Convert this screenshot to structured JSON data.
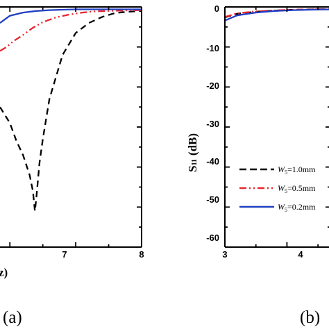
{
  "chart_data": [
    {
      "type": "line",
      "panel_label": "(a)",
      "xlabel_fragment": "z)",
      "x_ticks": [
        "7",
        "8"
      ],
      "xlim": [
        5.85,
        8.0
      ],
      "ylim": [
        -60,
        0
      ],
      "series": [
        {
          "color": "#000000",
          "dash": "long-dash",
          "x": [
            5.85,
            6.0,
            6.1,
            6.2,
            6.3,
            6.35,
            6.38,
            6.4,
            6.45,
            6.5,
            6.6,
            6.8,
            7.0,
            7.2,
            7.4,
            7.6,
            7.8,
            8.0
          ],
          "y": [
            -25,
            -29,
            -33.5,
            -37,
            -42,
            -46,
            -51,
            -48,
            -39,
            -33,
            -23,
            -12,
            -6.5,
            -4,
            -2.5,
            -1.5,
            -1.2,
            -1.0
          ]
        },
        {
          "color": "#e8262d",
          "dash": "dash-dot-dot",
          "x": [
            5.85,
            5.95,
            6.05,
            6.2,
            6.35,
            6.5,
            6.7,
            6.9,
            7.1,
            7.3,
            7.5,
            7.7,
            8.0
          ],
          "y": [
            -11,
            -10,
            -8.6,
            -7,
            -5.2,
            -3.8,
            -2.6,
            -1.9,
            -1.4,
            -1.1,
            -1.0,
            -0.9,
            -0.8
          ]
        },
        {
          "color": "#1f3fc4",
          "dash": "solid",
          "x": [
            5.85,
            6.0,
            6.2,
            6.4,
            6.6,
            6.8,
            7.0,
            7.2,
            7.5,
            8.0
          ],
          "y": [
            -4.0,
            -2.2,
            -1.4,
            -1.0,
            -0.8,
            -0.7,
            -0.6,
            -0.6,
            -0.6,
            -0.6
          ]
        }
      ]
    },
    {
      "type": "line",
      "panel_label": "(b)",
      "ylabel_main": "S",
      "ylabel_sub": "11",
      "ylabel_unit": "(dB)",
      "x_ticks": [
        "3",
        "4"
      ],
      "y_ticks": [
        "0",
        "-10",
        "-20",
        "-30",
        "-40",
        "-50",
        "-60"
      ],
      "xlim": [
        3,
        4.7
      ],
      "ylim": [
        -60,
        0
      ],
      "series": [
        {
          "name_w": "W",
          "name_sub": "5",
          "name_val": "=1.0mm",
          "color": "#000000",
          "dash": "long-dash",
          "x": [
            3.0,
            3.2,
            3.5,
            3.8,
            4.1,
            4.4,
            4.7
          ],
          "y": [
            -2.6,
            -1.7,
            -1.2,
            -0.9,
            -0.7,
            -0.6,
            -0.55
          ]
        },
        {
          "name_w": "W",
          "name_sub": "5",
          "name_val": "=0.5mm",
          "color": "#e8262d",
          "dash": "dash-dot-dot",
          "x": [
            3.0,
            3.2,
            3.5,
            3.8,
            4.1,
            4.4,
            4.7
          ],
          "y": [
            -2.5,
            -1.6,
            -1.1,
            -0.85,
            -0.7,
            -0.6,
            -0.5
          ]
        },
        {
          "name_w": "W",
          "name_sub": "5",
          "name_val": "=0.2mm",
          "color": "#1f3fc4",
          "dash": "solid",
          "x": [
            3.0,
            3.2,
            3.5,
            3.8,
            4.1,
            4.4,
            4.7
          ],
          "y": [
            -3.4,
            -2.1,
            -1.4,
            -1.0,
            -0.8,
            -0.7,
            -0.6
          ]
        }
      ]
    }
  ]
}
